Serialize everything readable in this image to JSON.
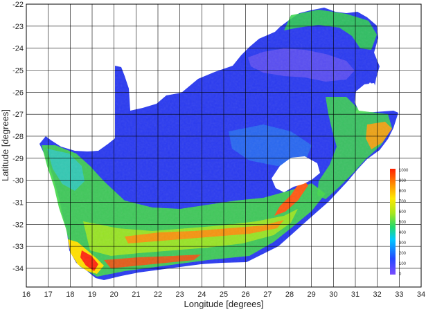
{
  "chart_data": {
    "type": "heatmap",
    "title": "",
    "xlabel": "Longitude [degrees]",
    "ylabel": "Latitude [degrees]",
    "xlim": [
      16,
      34
    ],
    "ylim": [
      -35,
      -22
    ],
    "x_ticks": [
      "16",
      "17",
      "18",
      "19",
      "20",
      "21",
      "22",
      "23",
      "24",
      "25",
      "26",
      "27",
      "28",
      "29",
      "30",
      "31",
      "32",
      "33",
      "34"
    ],
    "y_ticks": [
      "-22",
      "-23",
      "-24",
      "-25",
      "-26",
      "-27",
      "-28",
      "-29",
      "-30",
      "-31",
      "-32",
      "-33",
      "-34"
    ],
    "grid": true,
    "colorbar": {
      "placement": "right-inset",
      "range": [
        0,
        1000
      ],
      "ticks": [
        "1000",
        "900",
        "800",
        "700",
        "600",
        "500",
        "400",
        "300",
        "200",
        "100",
        "0"
      ],
      "colors": [
        "#7a4cff",
        "#2448ff",
        "#00c8ff",
        "#22d96a",
        "#a8e61c",
        "#ffe800",
        "#ff9000",
        "#ff2000"
      ]
    },
    "region_colors": {
      "low": "#2b3bf0",
      "mid": "#3fd94a",
      "high": "#ff2a10",
      "lowest": "#7b5bf0"
    }
  }
}
